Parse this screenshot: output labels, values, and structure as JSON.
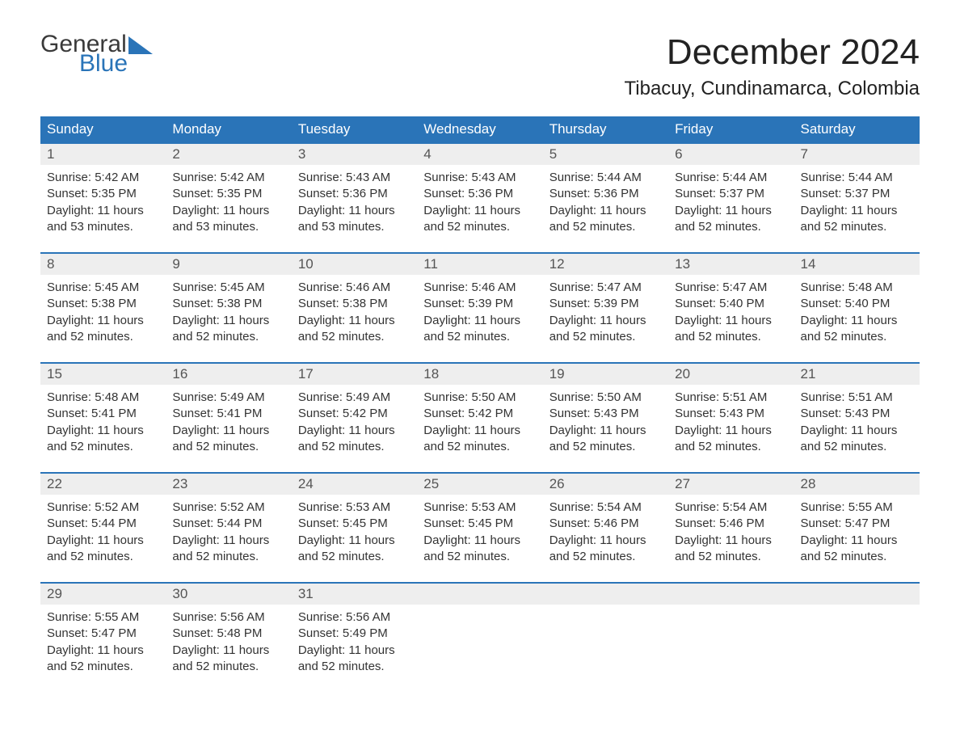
{
  "logo": {
    "text1": "General",
    "text2": "Blue"
  },
  "title": "December 2024",
  "location": "Tibacuy, Cundinamarca, Colombia",
  "colors": {
    "header_bg": "#2a74b8",
    "header_text": "#ffffff",
    "daynum_bg": "#eeeeee",
    "text": "#333333",
    "accent": "#2a74b8"
  },
  "typography": {
    "title_fontsize": 44,
    "location_fontsize": 24,
    "dow_fontsize": 17,
    "body_fontsize": 15
  },
  "days_of_week": [
    "Sunday",
    "Monday",
    "Tuesday",
    "Wednesday",
    "Thursday",
    "Friday",
    "Saturday"
  ],
  "weeks": [
    [
      {
        "num": "1",
        "sunrise": "Sunrise: 5:42 AM",
        "sunset": "Sunset: 5:35 PM",
        "daylight": "Daylight: 11 hours and 53 minutes."
      },
      {
        "num": "2",
        "sunrise": "Sunrise: 5:42 AM",
        "sunset": "Sunset: 5:35 PM",
        "daylight": "Daylight: 11 hours and 53 minutes."
      },
      {
        "num": "3",
        "sunrise": "Sunrise: 5:43 AM",
        "sunset": "Sunset: 5:36 PM",
        "daylight": "Daylight: 11 hours and 53 minutes."
      },
      {
        "num": "4",
        "sunrise": "Sunrise: 5:43 AM",
        "sunset": "Sunset: 5:36 PM",
        "daylight": "Daylight: 11 hours and 52 minutes."
      },
      {
        "num": "5",
        "sunrise": "Sunrise: 5:44 AM",
        "sunset": "Sunset: 5:36 PM",
        "daylight": "Daylight: 11 hours and 52 minutes."
      },
      {
        "num": "6",
        "sunrise": "Sunrise: 5:44 AM",
        "sunset": "Sunset: 5:37 PM",
        "daylight": "Daylight: 11 hours and 52 minutes."
      },
      {
        "num": "7",
        "sunrise": "Sunrise: 5:44 AM",
        "sunset": "Sunset: 5:37 PM",
        "daylight": "Daylight: 11 hours and 52 minutes."
      }
    ],
    [
      {
        "num": "8",
        "sunrise": "Sunrise: 5:45 AM",
        "sunset": "Sunset: 5:38 PM",
        "daylight": "Daylight: 11 hours and 52 minutes."
      },
      {
        "num": "9",
        "sunrise": "Sunrise: 5:45 AM",
        "sunset": "Sunset: 5:38 PM",
        "daylight": "Daylight: 11 hours and 52 minutes."
      },
      {
        "num": "10",
        "sunrise": "Sunrise: 5:46 AM",
        "sunset": "Sunset: 5:38 PM",
        "daylight": "Daylight: 11 hours and 52 minutes."
      },
      {
        "num": "11",
        "sunrise": "Sunrise: 5:46 AM",
        "sunset": "Sunset: 5:39 PM",
        "daylight": "Daylight: 11 hours and 52 minutes."
      },
      {
        "num": "12",
        "sunrise": "Sunrise: 5:47 AM",
        "sunset": "Sunset: 5:39 PM",
        "daylight": "Daylight: 11 hours and 52 minutes."
      },
      {
        "num": "13",
        "sunrise": "Sunrise: 5:47 AM",
        "sunset": "Sunset: 5:40 PM",
        "daylight": "Daylight: 11 hours and 52 minutes."
      },
      {
        "num": "14",
        "sunrise": "Sunrise: 5:48 AM",
        "sunset": "Sunset: 5:40 PM",
        "daylight": "Daylight: 11 hours and 52 minutes."
      }
    ],
    [
      {
        "num": "15",
        "sunrise": "Sunrise: 5:48 AM",
        "sunset": "Sunset: 5:41 PM",
        "daylight": "Daylight: 11 hours and 52 minutes."
      },
      {
        "num": "16",
        "sunrise": "Sunrise: 5:49 AM",
        "sunset": "Sunset: 5:41 PM",
        "daylight": "Daylight: 11 hours and 52 minutes."
      },
      {
        "num": "17",
        "sunrise": "Sunrise: 5:49 AM",
        "sunset": "Sunset: 5:42 PM",
        "daylight": "Daylight: 11 hours and 52 minutes."
      },
      {
        "num": "18",
        "sunrise": "Sunrise: 5:50 AM",
        "sunset": "Sunset: 5:42 PM",
        "daylight": "Daylight: 11 hours and 52 minutes."
      },
      {
        "num": "19",
        "sunrise": "Sunrise: 5:50 AM",
        "sunset": "Sunset: 5:43 PM",
        "daylight": "Daylight: 11 hours and 52 minutes."
      },
      {
        "num": "20",
        "sunrise": "Sunrise: 5:51 AM",
        "sunset": "Sunset: 5:43 PM",
        "daylight": "Daylight: 11 hours and 52 minutes."
      },
      {
        "num": "21",
        "sunrise": "Sunrise: 5:51 AM",
        "sunset": "Sunset: 5:43 PM",
        "daylight": "Daylight: 11 hours and 52 minutes."
      }
    ],
    [
      {
        "num": "22",
        "sunrise": "Sunrise: 5:52 AM",
        "sunset": "Sunset: 5:44 PM",
        "daylight": "Daylight: 11 hours and 52 minutes."
      },
      {
        "num": "23",
        "sunrise": "Sunrise: 5:52 AM",
        "sunset": "Sunset: 5:44 PM",
        "daylight": "Daylight: 11 hours and 52 minutes."
      },
      {
        "num": "24",
        "sunrise": "Sunrise: 5:53 AM",
        "sunset": "Sunset: 5:45 PM",
        "daylight": "Daylight: 11 hours and 52 minutes."
      },
      {
        "num": "25",
        "sunrise": "Sunrise: 5:53 AM",
        "sunset": "Sunset: 5:45 PM",
        "daylight": "Daylight: 11 hours and 52 minutes."
      },
      {
        "num": "26",
        "sunrise": "Sunrise: 5:54 AM",
        "sunset": "Sunset: 5:46 PM",
        "daylight": "Daylight: 11 hours and 52 minutes."
      },
      {
        "num": "27",
        "sunrise": "Sunrise: 5:54 AM",
        "sunset": "Sunset: 5:46 PM",
        "daylight": "Daylight: 11 hours and 52 minutes."
      },
      {
        "num": "28",
        "sunrise": "Sunrise: 5:55 AM",
        "sunset": "Sunset: 5:47 PM",
        "daylight": "Daylight: 11 hours and 52 minutes."
      }
    ],
    [
      {
        "num": "29",
        "sunrise": "Sunrise: 5:55 AM",
        "sunset": "Sunset: 5:47 PM",
        "daylight": "Daylight: 11 hours and 52 minutes."
      },
      {
        "num": "30",
        "sunrise": "Sunrise: 5:56 AM",
        "sunset": "Sunset: 5:48 PM",
        "daylight": "Daylight: 11 hours and 52 minutes."
      },
      {
        "num": "31",
        "sunrise": "Sunrise: 5:56 AM",
        "sunset": "Sunset: 5:49 PM",
        "daylight": "Daylight: 11 hours and 52 minutes."
      },
      null,
      null,
      null,
      null
    ]
  ]
}
